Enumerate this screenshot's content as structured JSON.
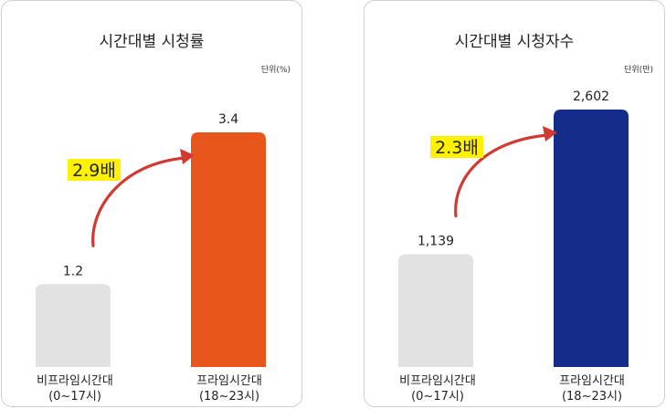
{
  "chart_data": [
    {
      "type": "bar",
      "title": "시간대별 시청률",
      "unit": "단위(%)",
      "categories": [
        [
          "비프라임시간대",
          "(0~17시)"
        ],
        [
          "프라임시간대",
          "(18~23시)"
        ]
      ],
      "values": [
        1.2,
        3.4
      ],
      "value_labels": [
        "1.2",
        "3.4"
      ],
      "colors": [
        "#e2e2e2",
        "#e8561b"
      ],
      "annotation": "2.9배",
      "annotation_highlight": "#fff200",
      "arrow_color": "#d03a33",
      "ylim": [
        0,
        3.4
      ]
    },
    {
      "type": "bar",
      "title": "시간대별 시청자수",
      "unit": "단위(만)",
      "categories": [
        [
          "비프라임시간대",
          "(0~17시)"
        ],
        [
          "프라임시간대",
          "(18~23시)"
        ]
      ],
      "values": [
        1139,
        2602
      ],
      "value_labels": [
        "1,139",
        "2,602"
      ],
      "colors": [
        "#e2e2e2",
        "#142d8a"
      ],
      "annotation": "2.3배",
      "annotation_highlight": "#fff200",
      "arrow_color": "#d03a33",
      "ylim": [
        0,
        2602
      ]
    }
  ]
}
